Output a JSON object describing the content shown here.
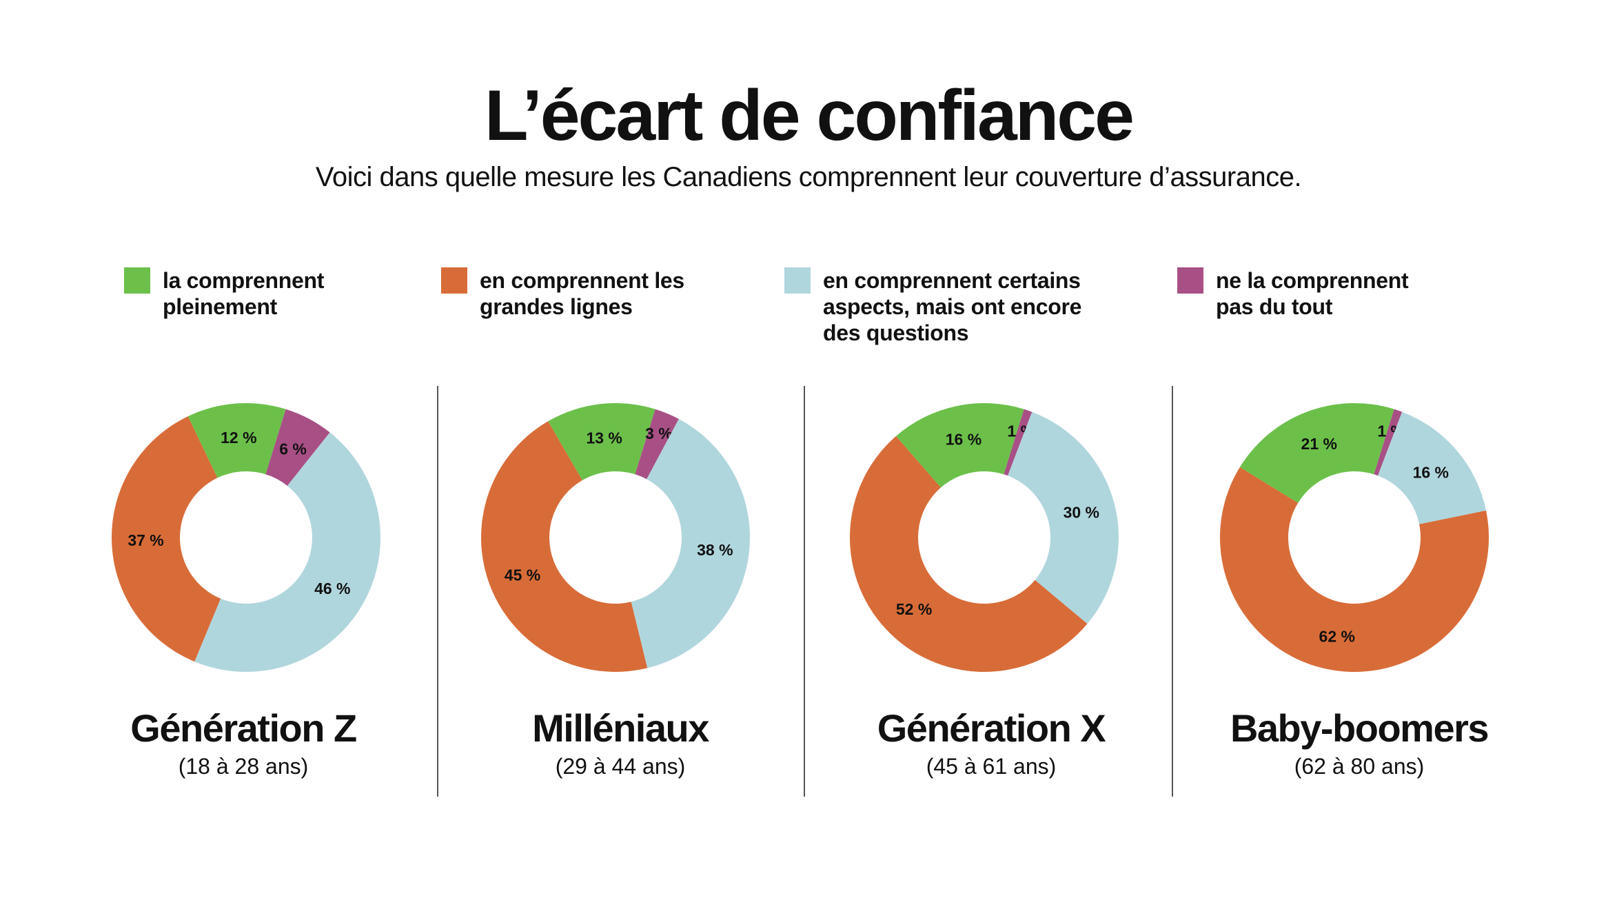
{
  "title": "L’écart de confiance",
  "subtitle": "Voici dans quelle mesure les Canadiens comprennent leur couverture d’assurance.",
  "legend": [
    {
      "label": "la comprennent\npleinement",
      "color": "#6cc04a"
    },
    {
      "label": "en comprennent les\ngrandes lignes",
      "color": "#d86c38"
    },
    {
      "label": "en comprennent certains\naspects, mais ont encore\ndes questions",
      "color": "#b0d6dd"
    },
    {
      "label": "ne la comprennent\npas du tout",
      "color": "#a85086"
    }
  ],
  "chart_data": [
    {
      "type": "pie",
      "name": "Génération Z",
      "subtitle": "(18 à 28 ans)",
      "categories": [
        "la comprennent pleinement",
        "en comprennent les grandes lignes",
        "en comprennent certains aspects, mais ont encore des questions",
        "ne la comprennent pas du tout"
      ],
      "values": [
        12,
        37,
        46,
        6
      ],
      "labels": [
        "12 %",
        "37 %",
        "46 %",
        "6 %"
      ]
    },
    {
      "type": "pie",
      "name": "Milléniaux",
      "subtitle": "(29 à 44 ans)",
      "categories": [
        "la comprennent pleinement",
        "en comprennent les grandes lignes",
        "en comprennent certains aspects, mais ont encore des questions",
        "ne la comprennent pas du tout"
      ],
      "values": [
        13,
        45,
        38,
        3
      ],
      "labels": [
        "13 %",
        "45 %",
        "38 %",
        "3 %"
      ]
    },
    {
      "type": "pie",
      "name": "Génération X",
      "subtitle": "(45 à 61 ans)",
      "categories": [
        "la comprennent pleinement",
        "en comprennent les grandes lignes",
        "en comprennent certains aspects, mais ont encore des questions",
        "ne la comprennent pas du tout"
      ],
      "values": [
        16,
        52,
        30,
        1
      ],
      "labels": [
        "16 %",
        "52 %",
        "30 %",
        "1 %"
      ]
    },
    {
      "type": "pie",
      "name": "Baby-boomers",
      "subtitle": "(62 à 80 ans)",
      "categories": [
        "la comprennent pleinement",
        "en comprennent les grandes lignes",
        "en comprennent certains aspects, mais ont encore des questions",
        "ne la comprennent pas du tout"
      ],
      "values": [
        21,
        62,
        16,
        1
      ],
      "labels": [
        "21 %",
        "62 %",
        "16 %",
        "1 %"
      ]
    }
  ]
}
